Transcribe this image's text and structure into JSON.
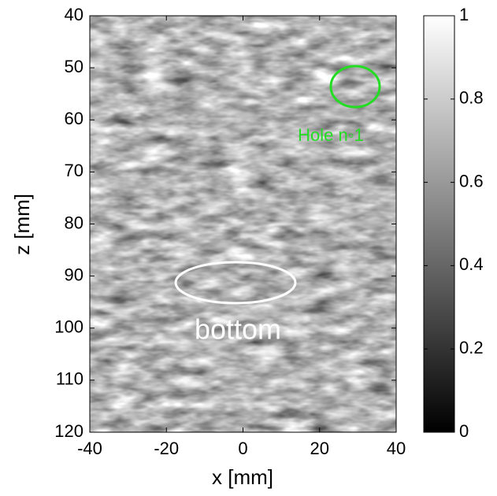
{
  "chart_data": {
    "type": "heatmap",
    "colormap": "gray",
    "xlabel": "x [mm]",
    "ylabel": "z [mm]",
    "xlim": [
      -40,
      40
    ],
    "xticks": [
      -40,
      -20,
      0,
      20,
      40
    ],
    "ylim": [
      120,
      40
    ],
    "yticks": [
      40,
      50,
      60,
      70,
      80,
      90,
      100,
      110,
      120
    ],
    "clim": [
      0,
      1
    ],
    "cticks": [
      0,
      0.2,
      0.4,
      0.6,
      0.8,
      1
    ],
    "annotations": [
      {
        "text": "Hole n◦1",
        "color": "#22dd22"
      },
      {
        "text": "bottom",
        "color": "#ffffff"
      }
    ]
  }
}
